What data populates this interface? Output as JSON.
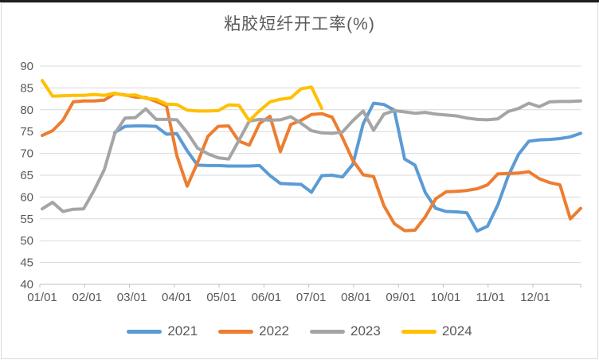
{
  "chart_data": {
    "type": "line",
    "title": "粘胶短纤开工率(%)",
    "xlabel": "",
    "ylabel": "",
    "ylim": [
      40,
      90
    ],
    "y_ticks": [
      90,
      85,
      80,
      75,
      70,
      65,
      60,
      55,
      50,
      45,
      40
    ],
    "x_tick_labels": [
      "01/01",
      "02/01",
      "03/01",
      "04/01",
      "05/01",
      "06/01",
      "07/01",
      "08/01",
      "09/01",
      "10/01",
      "11/01",
      "12/01"
    ],
    "x_unit": "weekly (53 points, Jan 1 - Dec 31)",
    "grid": true,
    "legend_position": "bottom",
    "axis_text_color": "#595959",
    "gridline_color": "#d9d9d9",
    "series": [
      {
        "name": "2021",
        "color": "#5B9BD5",
        "values": [
          null,
          null,
          null,
          null,
          null,
          null,
          null,
          74.8,
          76.2,
          76.3,
          76.3,
          76.2,
          74.4,
          74.5,
          70.6,
          67.3,
          67.2,
          67.2,
          67.1,
          67.1,
          67.1,
          67.2,
          64.9,
          63.1,
          63,
          62.9,
          61.1,
          64.9,
          65,
          64.6,
          67.5,
          76.8,
          81.5,
          81.2,
          79.9,
          68.7,
          67.3,
          61,
          57.4,
          56.7,
          56.6,
          56.4,
          52.2,
          53.3,
          58.2,
          64.8,
          69.8,
          72.8,
          73.1,
          73.2,
          73.4,
          73.8,
          74.6
        ]
      },
      {
        "name": "2022",
        "color": "#ED7D31",
        "values": [
          74.1,
          75.2,
          77.6,
          81.8,
          82,
          82,
          82.2,
          83.7,
          83.4,
          82.9,
          82.8,
          81.9,
          80.9,
          69.5,
          62.5,
          67.9,
          73.9,
          76.2,
          76.3,
          72.8,
          71.9,
          76.9,
          78.5,
          70.4,
          76.6,
          77.6,
          78.9,
          79.1,
          78.3,
          73.6,
          68.4,
          65.1,
          64.7,
          58,
          53.9,
          52.3,
          52.4,
          55.5,
          59.6,
          61.2,
          61.3,
          61.5,
          61.9,
          62.8,
          65.3,
          65.4,
          65.5,
          65.8,
          64.2,
          63.3,
          62.8,
          55,
          57.4
        ]
      },
      {
        "name": "2023",
        "color": "#A5A5A5",
        "values": [
          57.3,
          58.8,
          56.7,
          57.2,
          57.3,
          61.5,
          66.3,
          74.5,
          78.1,
          78.2,
          80.2,
          77.8,
          77.8,
          77.7,
          74.8,
          71.2,
          69.9,
          69,
          68.7,
          73,
          77.4,
          77.8,
          77.6,
          77.7,
          78.4,
          76.9,
          75.2,
          74.7,
          74.6,
          74.9,
          77.5,
          79.7,
          75.3,
          79,
          79.8,
          79.5,
          79.2,
          79.4,
          79,
          78.8,
          78.6,
          78.1,
          77.8,
          77.7,
          77.9,
          79.6,
          80.3,
          81.5,
          80.7,
          81.8,
          81.9,
          81.9,
          82
        ]
      },
      {
        "name": "2024",
        "color": "#FFC000",
        "values": [
          86.7,
          83.1,
          83.2,
          83.3,
          83.3,
          83.5,
          83.3,
          83.8,
          83.3,
          83.4,
          82.6,
          82.4,
          81.3,
          81.2,
          79.9,
          79.7,
          79.7,
          79.8,
          81.1,
          81,
          77.5,
          79.8,
          81.8,
          82.4,
          82.7,
          84.8,
          85.2,
          80.3,
          null,
          null,
          null,
          null,
          null,
          null,
          null,
          null,
          null,
          null,
          null,
          null,
          null,
          null,
          null,
          null,
          null,
          null,
          null,
          null,
          null,
          null,
          null,
          null,
          null
        ]
      }
    ]
  }
}
